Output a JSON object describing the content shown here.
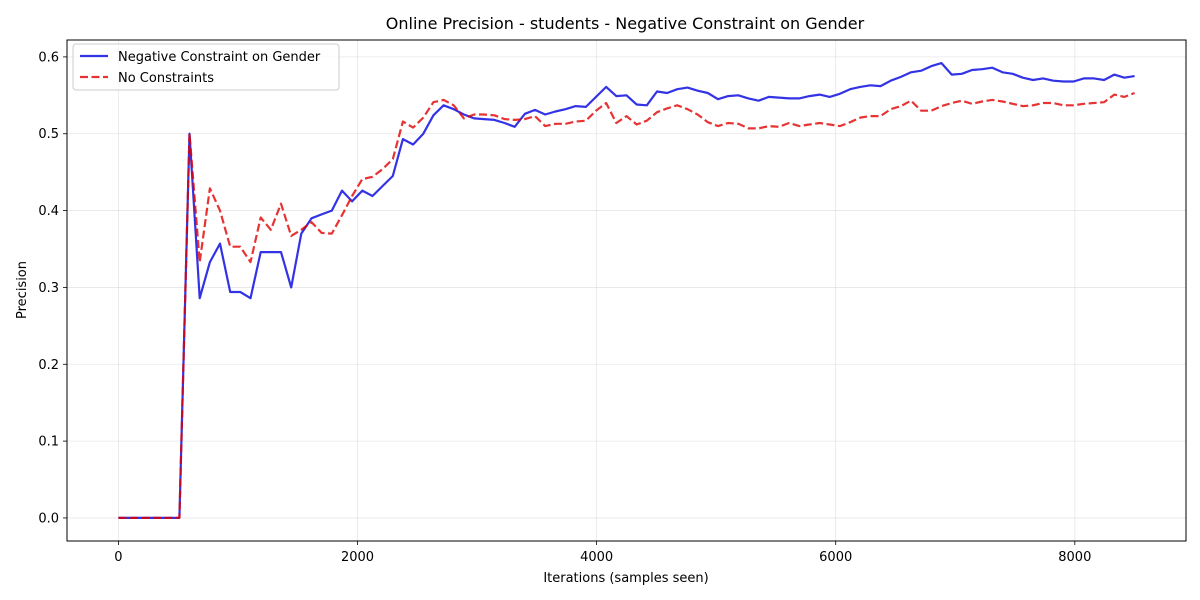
{
  "chart_data": {
    "type": "line",
    "title": "Online Precision - students - Negative Constraint on Gender",
    "xlabel": "Iterations (samples seen)",
    "ylabel": "Precision",
    "xlim": [
      -430,
      8930
    ],
    "ylim": [
      -0.03,
      0.622
    ],
    "xticks": [
      0,
      2000,
      4000,
      6000,
      8000
    ],
    "xtick_labels": [
      "0",
      "2000",
      "4000",
      "6000",
      "8000"
    ],
    "yticks": [
      0.0,
      0.1,
      0.2,
      0.3,
      0.4,
      0.5,
      0.6
    ],
    "ytick_labels": [
      "0.0",
      "0.1",
      "0.2",
      "0.3",
      "0.4",
      "0.5",
      "0.6"
    ],
    "grid": true,
    "legend_position": "top-left",
    "series": [
      {
        "name": "Negative Constraint on Gender",
        "color": "#0000e0",
        "style": "solid",
        "points": [
          [
            0,
            0.0
          ],
          [
            85,
            0.0
          ],
          [
            170,
            0.0
          ],
          [
            255,
            0.0
          ],
          [
            340,
            0.0
          ],
          [
            425,
            0.0
          ],
          [
            510,
            0.0
          ],
          [
            595,
            0.5
          ],
          [
            680,
            0.286
          ],
          [
            765,
            0.333
          ],
          [
            850,
            0.357
          ],
          [
            935,
            0.294
          ],
          [
            1020,
            0.294
          ],
          [
            1105,
            0.286
          ],
          [
            1190,
            0.346
          ],
          [
            1275,
            0.346
          ],
          [
            1360,
            0.346
          ],
          [
            1445,
            0.3
          ],
          [
            1530,
            0.37
          ],
          [
            1615,
            0.39
          ],
          [
            1700,
            0.395
          ],
          [
            1785,
            0.4
          ],
          [
            1870,
            0.426
          ],
          [
            1955,
            0.412
          ],
          [
            2040,
            0.426
          ],
          [
            2125,
            0.419
          ],
          [
            2210,
            0.432
          ],
          [
            2295,
            0.445
          ],
          [
            2380,
            0.493
          ],
          [
            2465,
            0.486
          ],
          [
            2550,
            0.5
          ],
          [
            2635,
            0.524
          ],
          [
            2720,
            0.537
          ],
          [
            2805,
            0.532
          ],
          [
            2890,
            0.525
          ],
          [
            2975,
            0.52
          ],
          [
            3060,
            0.519
          ],
          [
            3145,
            0.518
          ],
          [
            3230,
            0.514
          ],
          [
            3315,
            0.509
          ],
          [
            3400,
            0.526
          ],
          [
            3485,
            0.531
          ],
          [
            3570,
            0.525
          ],
          [
            3655,
            0.529
          ],
          [
            3740,
            0.532
          ],
          [
            3825,
            0.536
          ],
          [
            3910,
            0.535
          ],
          [
            3995,
            0.548
          ],
          [
            4080,
            0.561
          ],
          [
            4165,
            0.549
          ],
          [
            4250,
            0.55
          ],
          [
            4335,
            0.538
          ],
          [
            4420,
            0.537
          ],
          [
            4505,
            0.555
          ],
          [
            4590,
            0.553
          ],
          [
            4675,
            0.558
          ],
          [
            4760,
            0.56
          ],
          [
            4845,
            0.556
          ],
          [
            4930,
            0.553
          ],
          [
            5015,
            0.545
          ],
          [
            5100,
            0.549
          ],
          [
            5185,
            0.55
          ],
          [
            5270,
            0.546
          ],
          [
            5355,
            0.543
          ],
          [
            5440,
            0.548
          ],
          [
            5525,
            0.547
          ],
          [
            5610,
            0.546
          ],
          [
            5695,
            0.546
          ],
          [
            5780,
            0.549
          ],
          [
            5865,
            0.551
          ],
          [
            5950,
            0.548
          ],
          [
            6035,
            0.552
          ],
          [
            6120,
            0.558
          ],
          [
            6205,
            0.561
          ],
          [
            6290,
            0.563
          ],
          [
            6375,
            0.562
          ],
          [
            6460,
            0.569
          ],
          [
            6545,
            0.574
          ],
          [
            6630,
            0.58
          ],
          [
            6715,
            0.582
          ],
          [
            6800,
            0.588
          ],
          [
            6885,
            0.592
          ],
          [
            6970,
            0.577
          ],
          [
            7055,
            0.578
          ],
          [
            7140,
            0.583
          ],
          [
            7225,
            0.584
          ],
          [
            7310,
            0.586
          ],
          [
            7395,
            0.58
          ],
          [
            7480,
            0.578
          ],
          [
            7565,
            0.573
          ],
          [
            7650,
            0.57
          ],
          [
            7735,
            0.572
          ],
          [
            7820,
            0.569
          ],
          [
            7905,
            0.568
          ],
          [
            7990,
            0.568
          ],
          [
            8075,
            0.572
          ],
          [
            8160,
            0.572
          ],
          [
            8245,
            0.57
          ],
          [
            8330,
            0.577
          ],
          [
            8415,
            0.573
          ],
          [
            8500,
            0.575
          ]
        ]
      },
      {
        "name": "No Constraints",
        "color": "#e00000",
        "style": "dashed",
        "points": [
          [
            0,
            0.0
          ],
          [
            85,
            0.0
          ],
          [
            170,
            0.0
          ],
          [
            255,
            0.0
          ],
          [
            340,
            0.0
          ],
          [
            425,
            0.0
          ],
          [
            510,
            0.0
          ],
          [
            595,
            0.5
          ],
          [
            680,
            0.333
          ],
          [
            765,
            0.429
          ],
          [
            850,
            0.4
          ],
          [
            935,
            0.353
          ],
          [
            1020,
            0.353
          ],
          [
            1105,
            0.333
          ],
          [
            1190,
            0.391
          ],
          [
            1275,
            0.375
          ],
          [
            1360,
            0.409
          ],
          [
            1445,
            0.367
          ],
          [
            1530,
            0.375
          ],
          [
            1615,
            0.385
          ],
          [
            1700,
            0.371
          ],
          [
            1785,
            0.37
          ],
          [
            1870,
            0.394
          ],
          [
            1955,
            0.419
          ],
          [
            2040,
            0.441
          ],
          [
            2125,
            0.444
          ],
          [
            2210,
            0.454
          ],
          [
            2295,
            0.467
          ],
          [
            2380,
            0.516
          ],
          [
            2465,
            0.508
          ],
          [
            2550,
            0.521
          ],
          [
            2635,
            0.541
          ],
          [
            2720,
            0.544
          ],
          [
            2805,
            0.537
          ],
          [
            2890,
            0.52
          ],
          [
            2975,
            0.525
          ],
          [
            3060,
            0.525
          ],
          [
            3145,
            0.524
          ],
          [
            3230,
            0.519
          ],
          [
            3315,
            0.518
          ],
          [
            3400,
            0.519
          ],
          [
            3485,
            0.523
          ],
          [
            3570,
            0.51
          ],
          [
            3655,
            0.513
          ],
          [
            3740,
            0.513
          ],
          [
            3825,
            0.516
          ],
          [
            3910,
            0.517
          ],
          [
            3995,
            0.53
          ],
          [
            4080,
            0.54
          ],
          [
            4165,
            0.514
          ],
          [
            4250,
            0.523
          ],
          [
            4335,
            0.512
          ],
          [
            4420,
            0.517
          ],
          [
            4505,
            0.528
          ],
          [
            4590,
            0.533
          ],
          [
            4675,
            0.537
          ],
          [
            4760,
            0.532
          ],
          [
            4845,
            0.525
          ],
          [
            4930,
            0.515
          ],
          [
            5015,
            0.51
          ],
          [
            5100,
            0.514
          ],
          [
            5185,
            0.513
          ],
          [
            5270,
            0.507
          ],
          [
            5355,
            0.507
          ],
          [
            5440,
            0.51
          ],
          [
            5525,
            0.509
          ],
          [
            5610,
            0.514
          ],
          [
            5695,
            0.51
          ],
          [
            5780,
            0.512
          ],
          [
            5865,
            0.514
          ],
          [
            5950,
            0.512
          ],
          [
            6035,
            0.51
          ],
          [
            6120,
            0.515
          ],
          [
            6205,
            0.521
          ],
          [
            6290,
            0.523
          ],
          [
            6375,
            0.523
          ],
          [
            6460,
            0.532
          ],
          [
            6545,
            0.536
          ],
          [
            6630,
            0.543
          ],
          [
            6715,
            0.53
          ],
          [
            6800,
            0.53
          ],
          [
            6885,
            0.536
          ],
          [
            6970,
            0.54
          ],
          [
            7055,
            0.543
          ],
          [
            7140,
            0.539
          ],
          [
            7225,
            0.542
          ],
          [
            7310,
            0.544
          ],
          [
            7395,
            0.542
          ],
          [
            7480,
            0.539
          ],
          [
            7565,
            0.536
          ],
          [
            7650,
            0.537
          ],
          [
            7735,
            0.54
          ],
          [
            7820,
            0.54
          ],
          [
            7905,
            0.537
          ],
          [
            7990,
            0.537
          ],
          [
            8075,
            0.539
          ],
          [
            8160,
            0.54
          ],
          [
            8245,
            0.541
          ],
          [
            8330,
            0.551
          ],
          [
            8415,
            0.548
          ],
          [
            8500,
            0.553
          ]
        ]
      }
    ]
  }
}
